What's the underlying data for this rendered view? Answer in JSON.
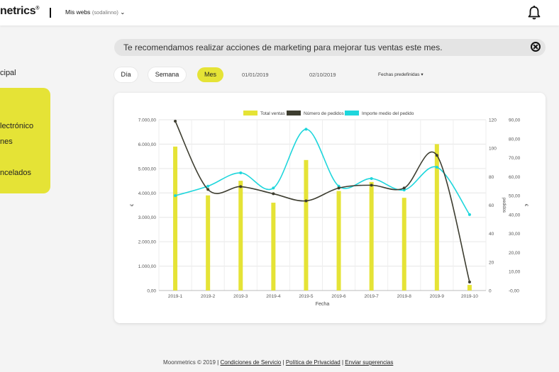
{
  "topbar": {
    "logo": "netrics",
    "logo_mark": "®",
    "webs_label": "Mis webs",
    "webs_sub": "(sodalinno)",
    "webs_arrow": "⌄"
  },
  "sidebar": {
    "principal": "cipal",
    "items": [
      "lectrónico",
      "nes",
      "ncelados"
    ]
  },
  "banner": {
    "text": "Te recomendamos realizar acciones de marketing para mejorar tus ventas este mes."
  },
  "filters": {
    "periods": [
      "Día",
      "Semana",
      "Mes"
    ],
    "active": "Mes",
    "date_from": "01/01/2019",
    "date_to": "02/10/2019",
    "predefined": "Fechas predefinidas ▾"
  },
  "chart_data": {
    "type": "bar",
    "categories": [
      "2019-1",
      "2019-2",
      "2019-3",
      "2019-4",
      "2019-5",
      "2019-6",
      "2019-7",
      "2019-8",
      "2019-9",
      "2019-10"
    ],
    "series": [
      {
        "name": "Total ventas",
        "type": "bar",
        "axis": "left",
        "color": "#e5e336",
        "values": [
          5900,
          3900,
          4500,
          3600,
          5350,
          4080,
          4450,
          3800,
          6000,
          230
        ]
      },
      {
        "name": "Número de pedidos",
        "type": "line",
        "axis": "right1",
        "color": "#3d3d30",
        "values": [
          119,
          71,
          73,
          68,
          63,
          72,
          74,
          72,
          95,
          6
        ]
      },
      {
        "name": "Importe medio del pedido",
        "type": "line",
        "axis": "right2",
        "color": "#1ed6dc",
        "values": [
          50,
          55,
          62,
          54,
          85,
          55,
          59,
          53,
          65,
          40
        ]
      }
    ],
    "xlabel": "Fecha",
    "ylabel": "€",
    "ylabel_right1": "pedidos",
    "ylabel_right2": "€",
    "left_ticks": [
      "0,00",
      "1.000,00",
      "2.000,00",
      "3.000,00",
      "4.000,00",
      "5.000,00",
      "6.000,00",
      "7.000,00"
    ],
    "right1_ticks": [
      "0",
      "20",
      "40",
      "60",
      "80",
      "100",
      "120"
    ],
    "right2_ticks": [
      "-0,00",
      "10,00",
      "20,00",
      "30,00",
      "40,00",
      "50,00",
      "60,00",
      "70,00",
      "80,00",
      "90,00"
    ],
    "ylim_left": [
      0,
      7000
    ],
    "ylim_right1": [
      0,
      120
    ],
    "ylim_right2": [
      0,
      90
    ],
    "grid": true,
    "legend": "top-center"
  },
  "footer": {
    "copyright": "Moonmetrics © 2019",
    "links": [
      "Condiciones de Servicio",
      "Política de Privacidad",
      "Enviar sugerencias"
    ]
  }
}
